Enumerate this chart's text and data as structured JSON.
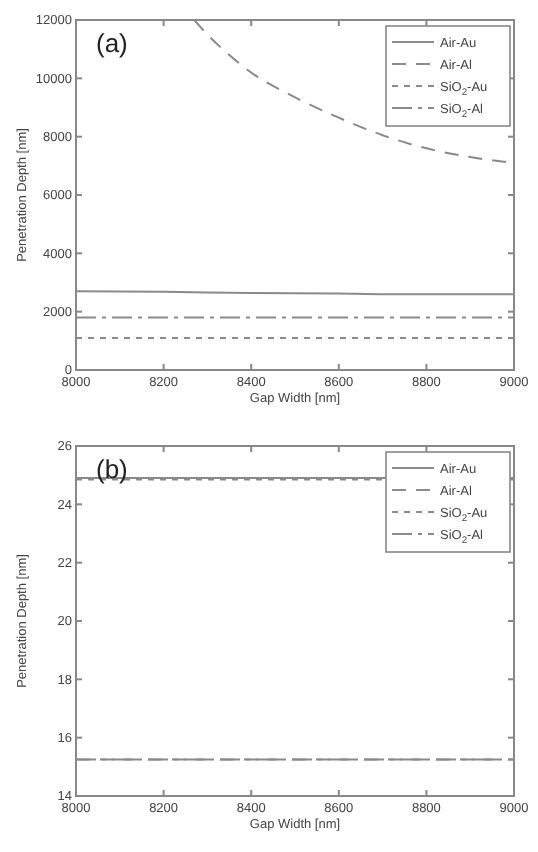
{
  "chart_data": [
    {
      "type": "line",
      "title": "(a)",
      "xlabel": "Gap Width [nm]",
      "ylabel": "Penetration Depth [nm]",
      "xlim": [
        8000,
        9000
      ],
      "xticks": [
        8000,
        8200,
        8400,
        8600,
        8800,
        9000
      ],
      "ylim": [
        0,
        12000
      ],
      "yticks": [
        0,
        2000,
        4000,
        6000,
        8000,
        10000,
        12000
      ],
      "legend": "top right",
      "grid": false,
      "series": [
        {
          "name": "Air-Au",
          "color": "#8a8a8a",
          "line_style": "solid",
          "x": [
            8000,
            8200,
            8400,
            8600,
            8700,
            8800,
            9000
          ],
          "values": [
            2700,
            2680,
            2640,
            2620,
            2600,
            2600,
            2600
          ]
        },
        {
          "name": "Air-Al",
          "color": "#8a8a8a",
          "line_style": "dashed",
          "x": [
            8270,
            8300,
            8350,
            8400,
            8500,
            8600,
            8700,
            8800,
            8900,
            9000
          ],
          "values": [
            12000,
            11500,
            10800,
            10200,
            9350,
            8650,
            8050,
            7600,
            7300,
            7100
          ]
        },
        {
          "name": "SiO$_{2}$-Au",
          "color": "#8a8a8a",
          "line_style": "dotted",
          "x": [
            8000,
            9000
          ],
          "values": [
            1100,
            1100
          ]
        },
        {
          "name": "SiO$_{2}$-Al",
          "color": "#8a8a8a",
          "line_style": "dashed",
          "x": [
            8000,
            9000
          ],
          "values": [
            1800,
            1800
          ]
        }
      ]
    },
    {
      "type": "line",
      "title": "(b)",
      "xlabel": "Gap Width [nm]",
      "ylabel": "Penetration Depth [nm]",
      "xlim": [
        8000,
        9000
      ],
      "xticks": [
        8000,
        8200,
        8400,
        8600,
        8800,
        9000
      ],
      "ylim": [
        14,
        26
      ],
      "yticks": [
        14,
        16,
        18,
        20,
        22,
        24,
        26
      ],
      "legend": "top right",
      "grid": false,
      "series": [
        {
          "name": "Air-Au",
          "color": "#8a8a8a",
          "line_style": "solid",
          "x": [
            8000,
            9000
          ],
          "values": [
            24.9,
            24.9
          ]
        },
        {
          "name": "Air-Al",
          "color": "#8a8a8a",
          "line_style": "dashed",
          "x": [
            8000,
            9000
          ],
          "values": [
            15.25,
            15.25
          ]
        },
        {
          "name": "SiO$_{2}$-Au",
          "color": "#8a8a8a",
          "line_style": "dotted",
          "x": [
            8000,
            9000
          ],
          "values": [
            24.85,
            24.85
          ]
        },
        {
          "name": "SiO$_{2}$-Al",
          "color": "#8a8a8a",
          "line_style": "dashed",
          "x": [
            8000,
            9000
          ],
          "values": [
            15.25,
            15.25
          ]
        }
      ]
    }
  ]
}
